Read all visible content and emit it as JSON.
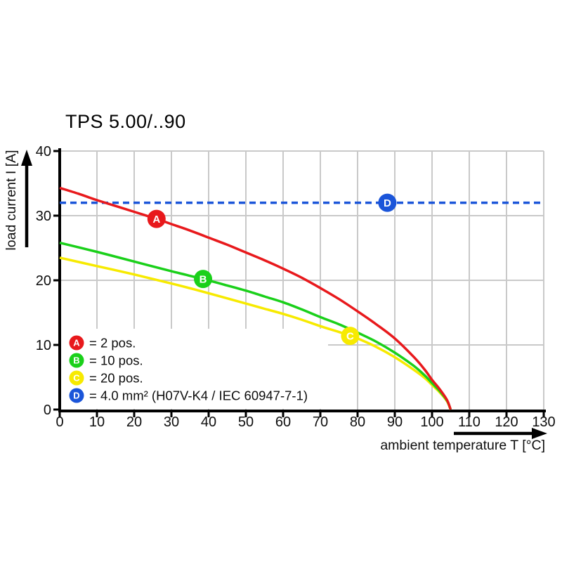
{
  "title": "TPS 5.00/..90",
  "chart_data": {
    "type": "line",
    "title": "TPS 5.00/..90",
    "xlabel": "ambient temperature T [°C]",
    "ylabel": "load current I [A]",
    "xlim": [
      0,
      130
    ],
    "ylim": [
      0,
      40
    ],
    "x_ticks": [
      0,
      10,
      20,
      30,
      40,
      50,
      60,
      70,
      80,
      90,
      100,
      110,
      120,
      130
    ],
    "y_ticks": [
      0,
      10,
      20,
      30,
      40
    ],
    "grid": true,
    "legend_position": "inside-bottom-left",
    "colors": {
      "axis": "#000000",
      "grid": "#c9c9c9",
      "red": "#e8191c",
      "green": "#1ad01a",
      "yellow": "#f7ea00",
      "blue": "#1b55d9",
      "marker_letter": "#ffffff"
    },
    "series": [
      {
        "key": "D",
        "name": "4.0 mm² (H07V-K4 / IEC 60947-7-1)",
        "color": "#1b55d9",
        "style": "dashed",
        "points": [
          [
            0,
            32
          ],
          [
            130,
            32
          ]
        ],
        "marker": {
          "label": "D",
          "x": 88,
          "y": 32
        }
      },
      {
        "key": "C",
        "name": "20 pos.",
        "color": "#f7ea00",
        "style": "solid",
        "points": [
          [
            0,
            23.5
          ],
          [
            10,
            22.2
          ],
          [
            20,
            20.9
          ],
          [
            30,
            19.5
          ],
          [
            40,
            18.0
          ],
          [
            50,
            16.4
          ],
          [
            55,
            15.6
          ],
          [
            60,
            14.8
          ],
          [
            65,
            13.9
          ],
          [
            70,
            12.9
          ],
          [
            75,
            12.0
          ],
          [
            78,
            11.4
          ],
          [
            80,
            11.0
          ],
          [
            85,
            9.7
          ],
          [
            90,
            8.1
          ],
          [
            95,
            6.2
          ],
          [
            98,
            4.9
          ],
          [
            100,
            3.8
          ],
          [
            102,
            2.7
          ],
          [
            104,
            1.3
          ],
          [
            105,
            0
          ]
        ],
        "marker": {
          "label": "C",
          "x": 78,
          "y": 11.4
        }
      },
      {
        "key": "B",
        "name": "10 pos.",
        "color": "#1ad01a",
        "style": "solid",
        "points": [
          [
            0,
            25.8
          ],
          [
            10,
            24.4
          ],
          [
            20,
            22.9
          ],
          [
            30,
            21.4
          ],
          [
            38.5,
            20.2
          ],
          [
            45,
            19.2
          ],
          [
            50,
            18.4
          ],
          [
            55,
            17.5
          ],
          [
            60,
            16.6
          ],
          [
            65,
            15.5
          ],
          [
            70,
            14.3
          ],
          [
            75,
            13.2
          ],
          [
            80,
            11.9
          ],
          [
            85,
            10.5
          ],
          [
            90,
            8.8
          ],
          [
            95,
            6.8
          ],
          [
            98,
            5.3
          ],
          [
            100,
            4.1
          ],
          [
            102,
            2.9
          ],
          [
            104,
            1.4
          ],
          [
            105,
            0
          ]
        ],
        "marker": {
          "label": "B",
          "x": 38.5,
          "y": 20.2
        }
      },
      {
        "key": "A",
        "name": "2 pos.",
        "color": "#e8191c",
        "style": "solid",
        "points": [
          [
            0,
            34.3
          ],
          [
            5,
            33.4
          ],
          [
            10,
            32.4
          ],
          [
            15,
            31.5
          ],
          [
            20,
            30.6
          ],
          [
            26,
            29.5
          ],
          [
            30,
            28.7
          ],
          [
            35,
            27.7
          ],
          [
            40,
            26.6
          ],
          [
            45,
            25.5
          ],
          [
            50,
            24.3
          ],
          [
            55,
            23.1
          ],
          [
            60,
            21.8
          ],
          [
            65,
            20.4
          ],
          [
            70,
            18.8
          ],
          [
            75,
            17.1
          ],
          [
            80,
            15.2
          ],
          [
            85,
            13.2
          ],
          [
            90,
            11.0
          ],
          [
            95,
            8.2
          ],
          [
            98,
            6.2
          ],
          [
            100,
            4.6
          ],
          [
            102,
            3.2
          ],
          [
            104,
            1.5
          ],
          [
            105,
            0
          ]
        ],
        "marker": {
          "label": "A",
          "x": 26,
          "y": 29.5
        }
      }
    ],
    "legend": [
      {
        "key": "A",
        "color": "#e8191c",
        "text": "= 2 pos."
      },
      {
        "key": "B",
        "color": "#1ad01a",
        "text": "= 10 pos."
      },
      {
        "key": "C",
        "color": "#f7ea00",
        "text": "= 20 pos."
      },
      {
        "key": "D",
        "color": "#1b55d9",
        "text": "= 4.0 mm² (H07V-K4 / IEC 60947-7-1)"
      }
    ]
  }
}
